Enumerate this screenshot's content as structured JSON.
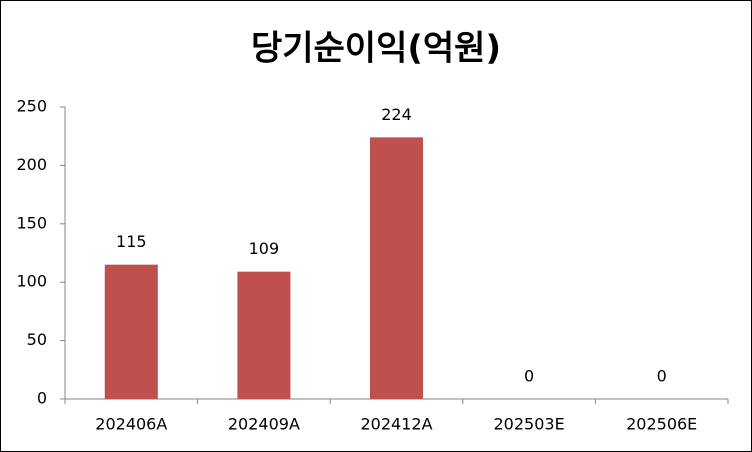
{
  "chart_data": {
    "type": "bar",
    "title": "당기순이익(억원)",
    "categories": [
      "202406A",
      "202409A",
      "202412A",
      "202503E",
      "202506E"
    ],
    "values": [
      115,
      109,
      224,
      0,
      0
    ],
    "color": "#c0504d",
    "ylim": [
      0,
      250
    ],
    "yticks": [
      0,
      50,
      100,
      150,
      200,
      250
    ],
    "grid": false
  }
}
